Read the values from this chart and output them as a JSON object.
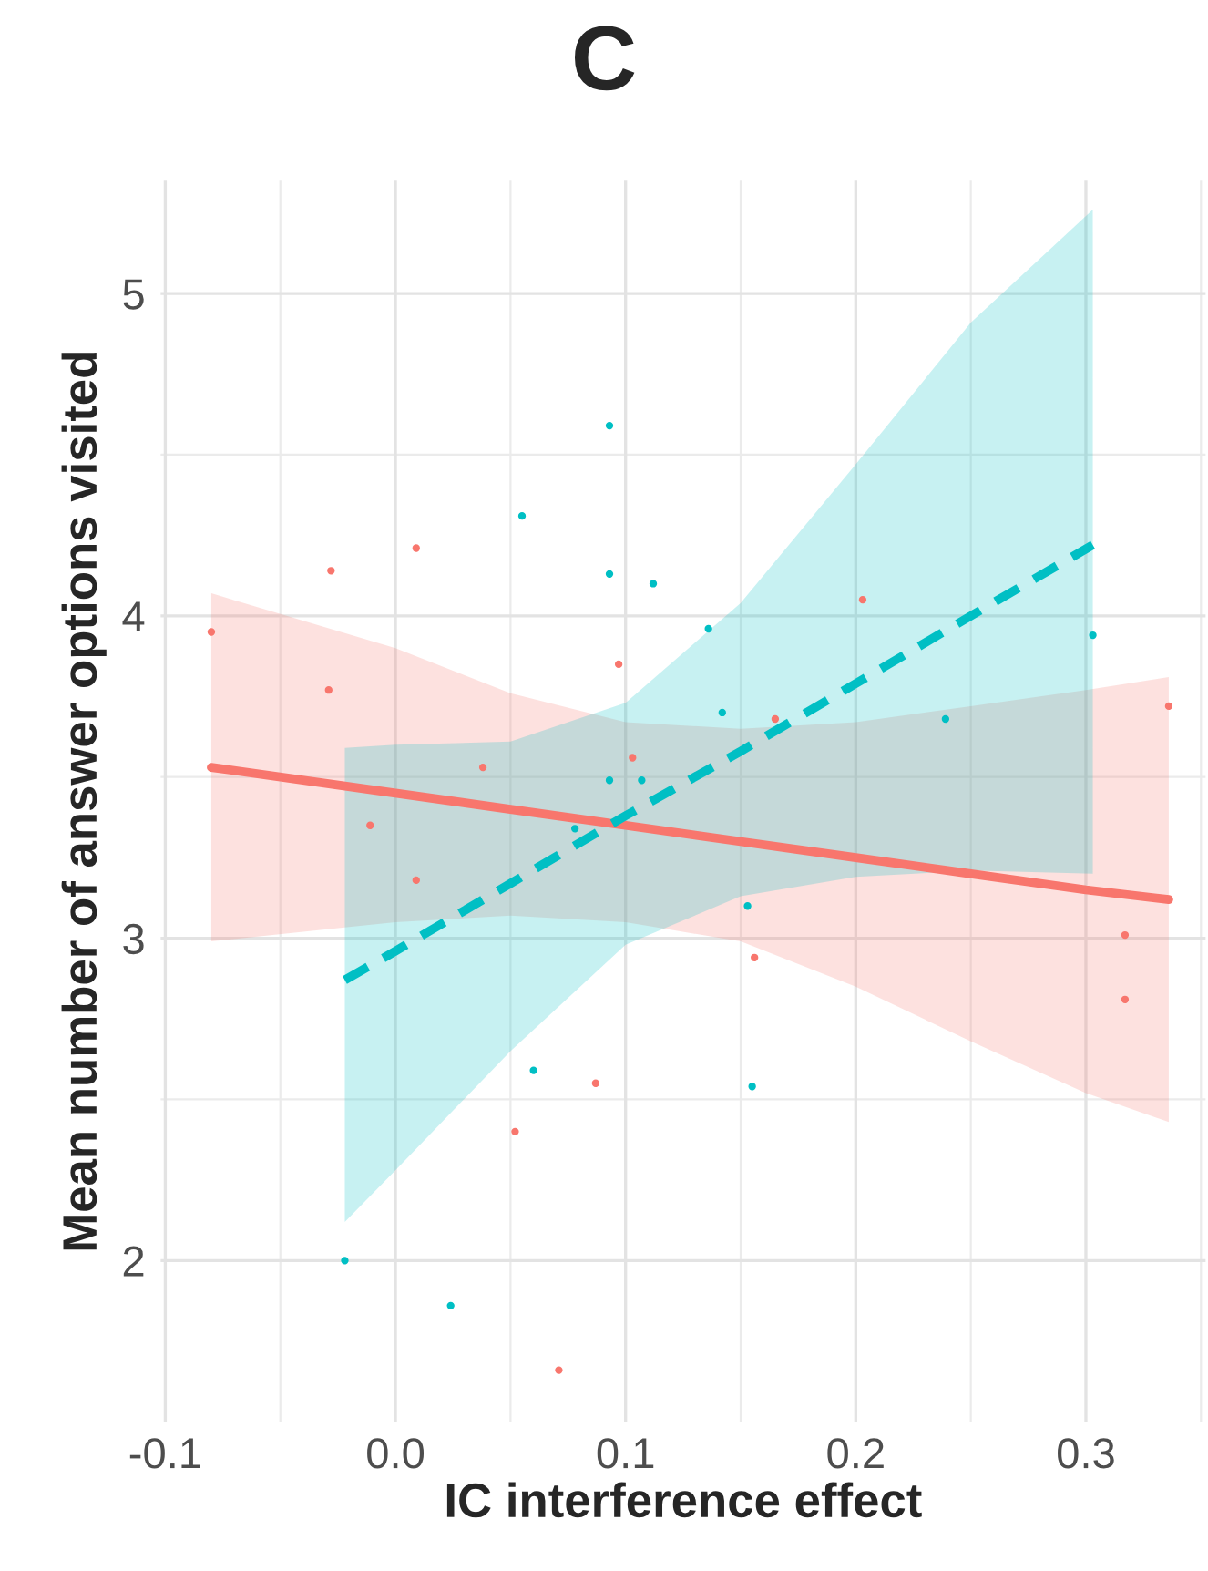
{
  "chart_data": {
    "type": "scatter",
    "title": "C",
    "xlabel": "IC interference effect",
    "ylabel": "Mean number of answer options visited",
    "xlim": [
      -0.102,
      0.352
    ],
    "ylim": [
      1.5,
      5.35
    ],
    "xticks": [
      {
        "value": -0.1,
        "label": "-0.1"
      },
      {
        "value": 0.0,
        "label": "0.0"
      },
      {
        "value": 0.1,
        "label": "0.1"
      },
      {
        "value": 0.2,
        "label": "0.2"
      },
      {
        "value": 0.3,
        "label": "0.3"
      }
    ],
    "yticks": [
      2,
      3,
      4,
      5
    ],
    "grid": true,
    "series": [
      {
        "marker": "circle",
        "color": "#f8766d",
        "x": [
          -0.028,
          0.009,
          -0.08,
          -0.029,
          0.097,
          0.038,
          0.103,
          -0.011,
          0.009,
          0.087,
          0.052,
          0.071,
          0.165,
          0.203,
          0.336,
          0.156,
          0.317,
          0.317
        ],
        "values": [
          4.14,
          4.21,
          3.95,
          3.77,
          3.85,
          3.53,
          3.56,
          3.35,
          3.18,
          2.55,
          2.4,
          1.66,
          3.68,
          4.05,
          3.72,
          2.94,
          3.01,
          2.81
        ]
      },
      {
        "marker": "circle",
        "color": "#00bfc4",
        "x": [
          0.093,
          0.055,
          0.093,
          0.112,
          0.093,
          0.107,
          0.078,
          0.06,
          -0.022,
          0.024,
          0.136,
          0.142,
          0.239,
          0.303,
          0.153,
          0.155
        ],
        "values": [
          4.59,
          4.31,
          4.13,
          4.1,
          3.49,
          3.49,
          3.34,
          2.59,
          2.0,
          1.86,
          3.96,
          3.7,
          3.68,
          3.94,
          3.1,
          2.54
        ]
      },
      {
        "type": "line",
        "marker": "none",
        "line_style": "solid",
        "color": "#f8766d",
        "x": [
          -0.08,
          0.0,
          0.05,
          0.1,
          0.15,
          0.2,
          0.25,
          0.3,
          0.336
        ],
        "values": [
          3.53,
          3.45,
          3.4,
          3.35,
          3.3,
          3.25,
          3.2,
          3.15,
          3.12
        ],
        "lower": [
          2.99,
          3.05,
          3.07,
          3.05,
          2.99,
          2.85,
          2.68,
          2.52,
          2.43
        ],
        "upper": [
          4.07,
          3.9,
          3.76,
          3.67,
          3.65,
          3.67,
          3.72,
          3.77,
          3.81
        ]
      },
      {
        "type": "line",
        "marker": "none",
        "line_style": "dashed",
        "color": "#00bfc4",
        "x": [
          -0.022,
          0.0,
          0.05,
          0.1,
          0.15,
          0.2,
          0.25,
          0.303
        ],
        "values": [
          2.87,
          2.96,
          3.17,
          3.38,
          3.58,
          3.79,
          4.0,
          4.22
        ],
        "lower": [
          2.12,
          2.28,
          2.65,
          2.98,
          3.13,
          3.19,
          3.21,
          3.2
        ],
        "upper": [
          3.59,
          3.6,
          3.61,
          3.73,
          4.04,
          4.47,
          4.91,
          5.26
        ]
      }
    ]
  }
}
